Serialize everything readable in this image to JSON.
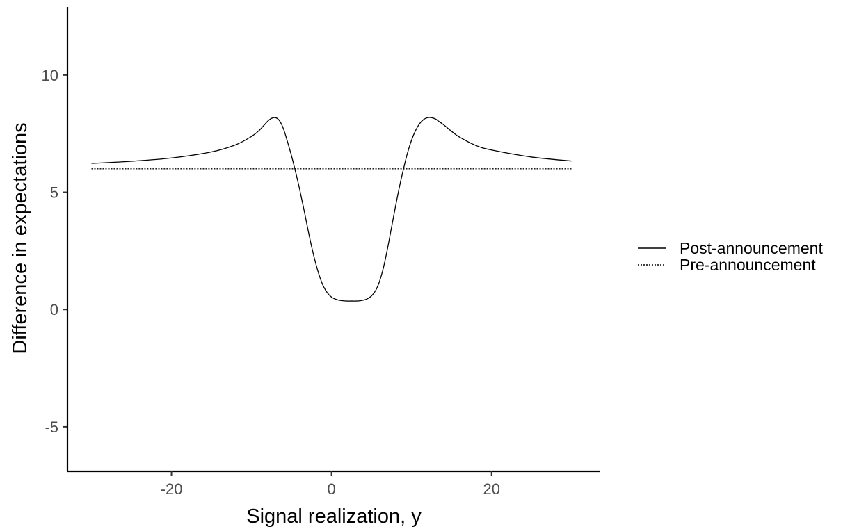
{
  "chart_data": {
    "type": "line",
    "title": "",
    "xlabel": "Signal realization, y",
    "ylabel": "Difference in expectations",
    "xlim": [
      -33,
      33.5
    ],
    "ylim": [
      -6.9,
      12.9
    ],
    "x_ticks": [
      -20,
      0,
      20
    ],
    "x_tick_labels": [
      "-20",
      "0",
      "20"
    ],
    "y_ticks": [
      -5,
      0,
      5,
      10
    ],
    "y_tick_labels": [
      "-5",
      "0",
      "5",
      "10"
    ],
    "grid": false,
    "legend_position": "right",
    "series": [
      {
        "name": "Post-announcement",
        "line_style": "solid",
        "color": "#000000",
        "x": [
          -30,
          -25,
          -20,
          -15,
          -12,
          -10,
          -9,
          -8,
          -7.5,
          -7,
          -6.5,
          -6,
          -5.5,
          -5,
          -4.5,
          -4,
          -3.5,
          -3,
          -2.5,
          -2,
          -1.5,
          -1,
          -0.5,
          0,
          0.5,
          1,
          1.5,
          2,
          2.5,
          3,
          3.5,
          4,
          4.5,
          5,
          5.5,
          6,
          6.5,
          7,
          7.5,
          8,
          8.5,
          9,
          9.5,
          10,
          10.5,
          11,
          11.5,
          12,
          12.5,
          13,
          13.5,
          14,
          15,
          16,
          18,
          20,
          25,
          30
        ],
        "y": [
          6.23,
          6.32,
          6.46,
          6.72,
          7.02,
          7.38,
          7.65,
          8.02,
          8.15,
          8.18,
          8.05,
          7.7,
          7.15,
          6.55,
          5.88,
          5.15,
          4.35,
          3.5,
          2.7,
          2.0,
          1.42,
          0.98,
          0.7,
          0.53,
          0.44,
          0.39,
          0.37,
          0.36,
          0.36,
          0.36,
          0.37,
          0.4,
          0.46,
          0.58,
          0.8,
          1.2,
          1.8,
          2.6,
          3.5,
          4.4,
          5.25,
          6.0,
          6.68,
          7.22,
          7.63,
          7.92,
          8.1,
          8.18,
          8.18,
          8.12,
          8.0,
          7.88,
          7.6,
          7.35,
          7.0,
          6.8,
          6.5,
          6.33
        ]
      },
      {
        "name": "Pre-announcement",
        "line_style": "dotted",
        "color": "#000000",
        "x": [
          -30,
          30
        ],
        "y": [
          6.0,
          6.0
        ]
      }
    ]
  }
}
